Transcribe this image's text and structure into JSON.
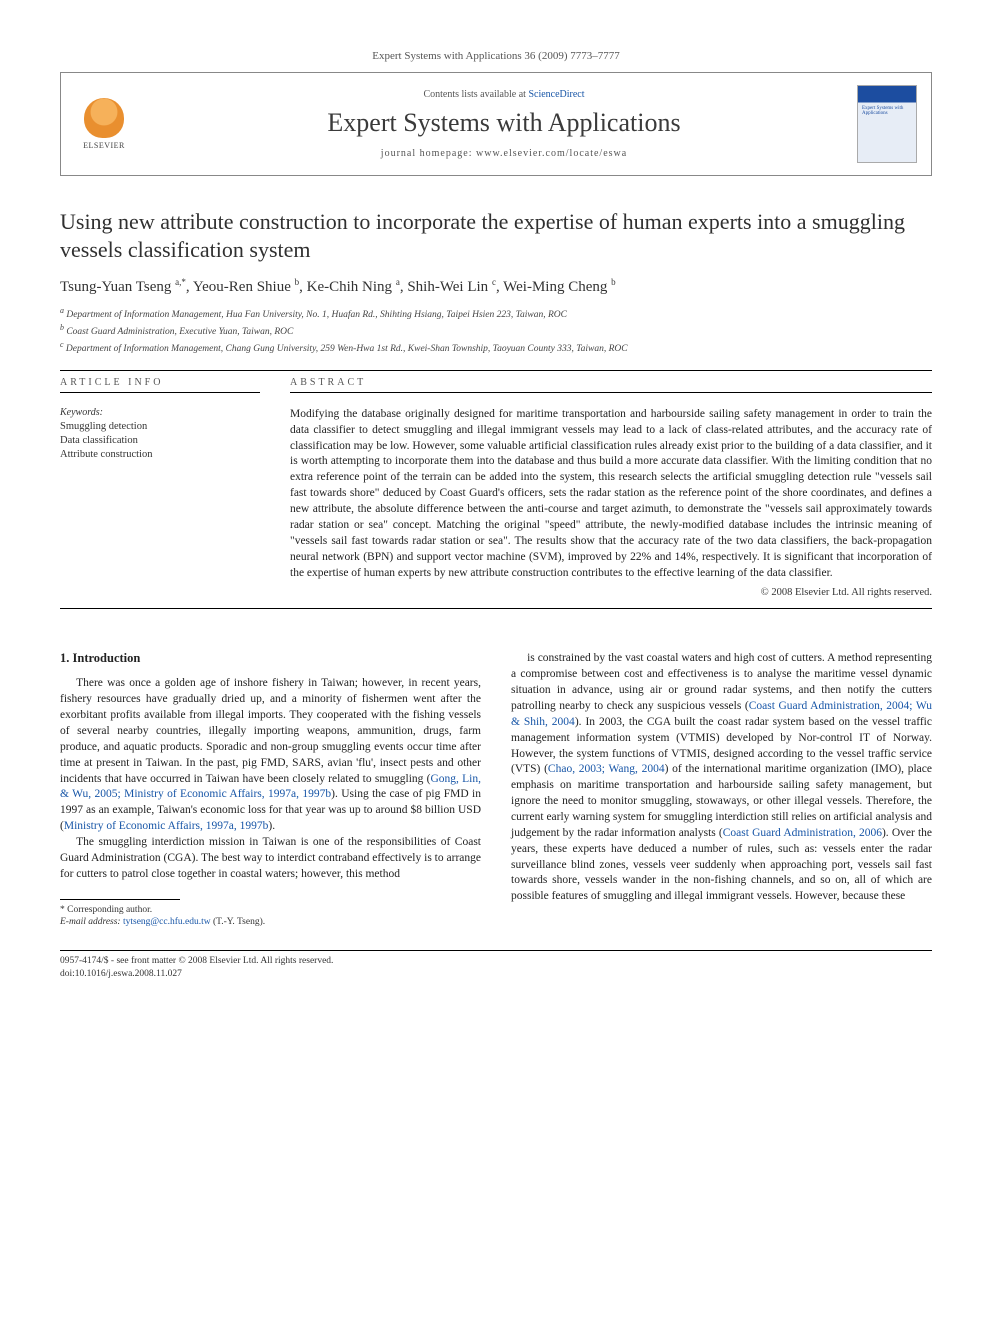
{
  "journal_ref": "Expert Systems with Applications 36 (2009) 7773–7777",
  "header": {
    "contents_prefix": "Contents lists available at ",
    "contents_link": "ScienceDirect",
    "journal_title": "Expert Systems with Applications",
    "homepage_prefix": "journal homepage: ",
    "homepage_url": "www.elsevier.com/locate/eswa",
    "publisher_name": "ELSEVIER",
    "cover_title": "Expert Systems with Applications"
  },
  "article": {
    "title": "Using new attribute construction to incorporate the expertise of human experts into a smuggling vessels classification system",
    "authors_html": "Tsung-Yuan Tseng <sup>a,*</sup>, Yeou-Ren Shiue <sup>b</sup>, Ke-Chih Ning <sup>a</sup>, Shih-Wei Lin <sup>c</sup>, Wei-Ming Cheng <sup>b</sup>",
    "affiliations": [
      "a Department of Information Management, Hua Fan University, No. 1, Huafan Rd., Shihting Hsiang, Taipei Hsien 223, Taiwan, ROC",
      "b Coast Guard Administration, Executive Yuan, Taiwan, ROC",
      "c Department of Information Management, Chang Gung University, 259 Wen-Hwa 1st Rd., Kwei-Shan Township, Taoyuan County 333, Taiwan, ROC"
    ]
  },
  "info": {
    "label": "ARTICLE INFO",
    "keywords_head": "Keywords:",
    "keywords": "Smuggling detection\nData classification\nAttribute construction"
  },
  "abstract": {
    "label": "ABSTRACT",
    "text": "Modifying the database originally designed for maritime transportation and harbourside sailing safety management in order to train the data classifier to detect smuggling and illegal immigrant vessels may lead to a lack of class-related attributes, and the accuracy rate of classification may be low. However, some valuable artificial classification rules already exist prior to the building of a data classifier, and it is worth attempting to incorporate them into the database and thus build a more accurate data classifier. With the limiting condition that no extra reference point of the terrain can be added into the system, this research selects the artificial smuggling detection rule \"vessels sail fast towards shore\" deduced by Coast Guard's officers, sets the radar station as the reference point of the shore coordinates, and defines a new attribute, the absolute difference between the anti-course and target azimuth, to demonstrate the \"vessels sail approximately towards radar station or sea\" concept. Matching the original \"speed\" attribute, the newly-modified database includes the intrinsic meaning of \"vessels sail fast towards radar station or sea\". The results show that the accuracy rate of the two data classifiers, the back-propagation neural network (BPN) and support vector machine (SVM), improved by 22% and 14%, respectively. It is significant that incorporation of the expertise of human experts by new attribute construction contributes to the effective learning of the data classifier.",
    "copyright": "© 2008 Elsevier Ltd. All rights reserved."
  },
  "body": {
    "section_heading": "1. Introduction",
    "left_col": [
      "There was once a golden age of inshore fishery in Taiwan; however, in recent years, fishery resources have gradually dried up, and a minority of fishermen went after the exorbitant profits available from illegal imports. They cooperated with the fishing vessels of several nearby countries, illegally importing weapons, ammunition, drugs, farm produce, and aquatic products. Sporadic and non-group smuggling events occur time after time at present in Taiwan. In the past, pig FMD, SARS, avian 'flu', insect pests and other incidents that have occurred in Taiwan have been closely related to smuggling (<span class=\"cite\">Gong, Lin, & Wu, 2005; Ministry of Economic Affairs, 1997a, 1997b</span>). Using the case of pig FMD in 1997 as an example, Taiwan's economic loss for that year was up to around $8 billion USD (<span class=\"cite\">Ministry of Economic Affairs, 1997a, 1997b</span>).",
      "The smuggling interdiction mission in Taiwan is one of the responsibilities of Coast Guard Administration (CGA). The best way to interdict contraband effectively is to arrange for cutters to patrol close together in coastal waters; however, this method"
    ],
    "right_col": [
      "is constrained by the vast coastal waters and high cost of cutters. A method representing a compromise between cost and effectiveness is to analyse the maritime vessel dynamic situation in advance, using air or ground radar systems, and then notify the cutters patrolling nearby to check any suspicious vessels (<span class=\"cite\">Coast Guard Administration, 2004; Wu & Shih, 2004</span>). In 2003, the CGA built the coast radar system based on the vessel traffic management information system (VTMIS) developed by Nor-control IT of Norway. However, the system functions of VTMIS, designed according to the vessel traffic service (VTS) (<span class=\"cite\">Chao, 2003; Wang, 2004</span>) of the international maritime organization (IMO), place emphasis on maritime transportation and harbourside sailing safety management, but ignore the need to monitor smuggling, stowaways, or other illegal vessels. Therefore, the current early warning system for smuggling interdiction still relies on artificial analysis and judgement by the radar information analysts (<span class=\"cite\">Coast Guard Administration, 2006</span>). Over the years, these experts have deduced a number of rules, such as: vessels enter the radar surveillance blind zones, vessels veer suddenly when approaching port, vessels sail fast towards shore, vessels wander in the non-fishing channels, and so on, all of which are possible features of smuggling and illegal immigrant vessels. However, because these"
    ]
  },
  "footnote": {
    "corresponding": "* Corresponding author.",
    "email_label": "E-mail address:",
    "email": "tytseng@cc.hfu.edu.tw",
    "email_tail": "(T.-Y. Tseng)."
  },
  "bottom": {
    "line1": "0957-4174/$ - see front matter © 2008 Elsevier Ltd. All rights reserved.",
    "line2": "doi:10.1016/j.eswa.2008.11.027"
  },
  "colors": {
    "link": "#1856a7",
    "text": "#222222",
    "rule": "#000000"
  }
}
